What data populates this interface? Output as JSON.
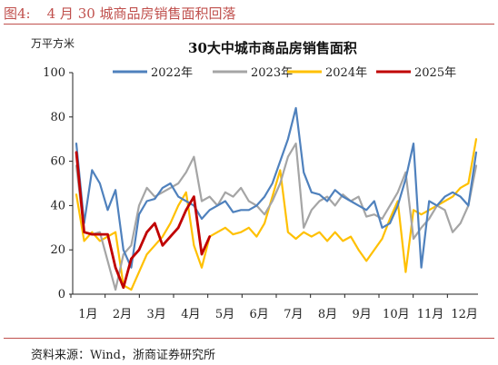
{
  "figure": {
    "number": "图4:",
    "caption": "4 月 30 城商品房销售面积回落",
    "source": "资料来源：Wind，浙商证券研究所"
  },
  "chart_data": {
    "type": "line",
    "title": "30大中城市商品房销售面积",
    "unit_label": "万平方米",
    "ylim": [
      0,
      100
    ],
    "yticks": [
      0,
      20,
      40,
      60,
      80,
      100
    ],
    "xlabels": [
      "1月",
      "2月",
      "3月",
      "4月",
      "5月",
      "6月",
      "7月",
      "8月",
      "9月",
      "10月",
      "11月",
      "12月"
    ],
    "x_unit": "week",
    "legend_position": "top",
    "grid": false,
    "series": [
      {
        "name": "2022年",
        "color": "#4f81bd",
        "x": [
          1,
          2,
          3,
          4,
          5,
          6,
          7,
          8,
          9,
          10,
          11,
          12,
          13,
          14,
          15,
          16,
          17,
          18,
          19,
          20,
          21,
          22,
          23,
          24,
          25,
          26,
          27,
          28,
          29,
          30,
          31,
          32,
          33,
          34,
          35,
          36,
          37,
          38,
          39,
          40,
          41,
          42,
          43,
          44,
          45,
          46,
          47,
          48,
          49,
          50,
          51,
          52
        ],
        "values": [
          68,
          32,
          56,
          50,
          38,
          47,
          20,
          12,
          36,
          42,
          43,
          48,
          50,
          44,
          42,
          40,
          34,
          38,
          40,
          42,
          37,
          38,
          38,
          40,
          44,
          50,
          60,
          70,
          84,
          55,
          46,
          45,
          42,
          47,
          44,
          42,
          40,
          38,
          42,
          30,
          32,
          40,
          52,
          68,
          12,
          42,
          40,
          44,
          46,
          44,
          40,
          64
        ]
      },
      {
        "name": "2023年",
        "color": "#a5a5a5",
        "x": [
          1,
          2,
          3,
          4,
          5,
          6,
          7,
          8,
          9,
          10,
          11,
          12,
          13,
          14,
          15,
          16,
          17,
          18,
          19,
          20,
          21,
          22,
          23,
          24,
          25,
          26,
          27,
          28,
          29,
          30,
          31,
          32,
          33,
          34,
          35,
          36,
          37,
          38,
          39,
          40,
          41,
          42,
          43,
          44,
          45,
          46,
          47,
          48,
          49,
          50,
          51,
          52
        ],
        "values": [
          58,
          28,
          27,
          28,
          15,
          2,
          18,
          22,
          40,
          48,
          44,
          46,
          48,
          50,
          55,
          62,
          42,
          44,
          40,
          46,
          44,
          48,
          42,
          40,
          36,
          42,
          50,
          62,
          68,
          30,
          38,
          42,
          44,
          40,
          45,
          42,
          44,
          35,
          36,
          34,
          40,
          46,
          55,
          25,
          30,
          34,
          40,
          38,
          28,
          32,
          40,
          58
        ]
      },
      {
        "name": "2024年",
        "color": "#ffc000",
        "x": [
          1,
          2,
          3,
          4,
          5,
          6,
          7,
          8,
          9,
          10,
          11,
          12,
          13,
          14,
          15,
          16,
          17,
          18,
          19,
          20,
          21,
          22,
          23,
          24,
          25,
          26,
          27,
          28,
          29,
          30,
          31,
          32,
          33,
          34,
          35,
          36,
          37,
          38,
          39,
          40,
          41,
          42,
          43,
          44,
          45,
          46,
          47,
          48,
          49,
          50,
          51,
          52
        ],
        "values": [
          45,
          24,
          28,
          24,
          26,
          28,
          4,
          2,
          10,
          18,
          22,
          26,
          32,
          40,
          46,
          22,
          12,
          26,
          28,
          30,
          27,
          28,
          30,
          26,
          32,
          44,
          56,
          28,
          25,
          28,
          26,
          28,
          24,
          28,
          24,
          26,
          20,
          15,
          20,
          25,
          34,
          42,
          10,
          38,
          36,
          38,
          40,
          42,
          44,
          48,
          50,
          70
        ]
      },
      {
        "name": "2025年",
        "color": "#c00000",
        "x": [
          1,
          2,
          3,
          4,
          5,
          6,
          7,
          8,
          9,
          10,
          11,
          12,
          13,
          14,
          15,
          16,
          17,
          18
        ],
        "values": [
          64,
          28,
          27,
          27,
          27,
          12,
          3,
          16,
          20,
          28,
          32,
          22,
          26,
          30,
          38,
          44,
          18,
          26
        ]
      }
    ]
  }
}
